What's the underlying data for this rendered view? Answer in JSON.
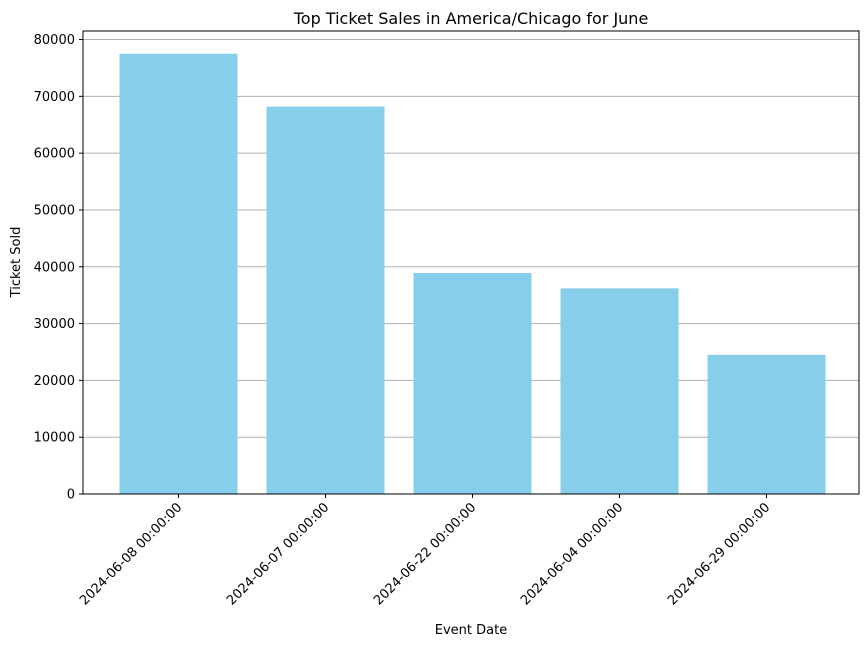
{
  "chart_data": {
    "type": "bar",
    "title": "Top Ticket Sales in America/Chicago for June",
    "xlabel": "Event Date",
    "ylabel": "Ticket Sold",
    "categories": [
      "2024-06-08 00:00:00",
      "2024-06-07 00:00:00",
      "2024-06-22 00:00:00",
      "2024-06-04 00:00:00",
      "2024-06-29 00:00:00"
    ],
    "values": [
      77500,
      68200,
      38900,
      36200,
      24500
    ],
    "ylim": [
      0,
      81500
    ],
    "yticks": [
      0,
      10000,
      20000,
      30000,
      40000,
      50000,
      60000,
      70000,
      80000
    ],
    "grid": "horizontal",
    "bar_color": "#87ceeb",
    "grid_color": "#b0b0b0"
  }
}
